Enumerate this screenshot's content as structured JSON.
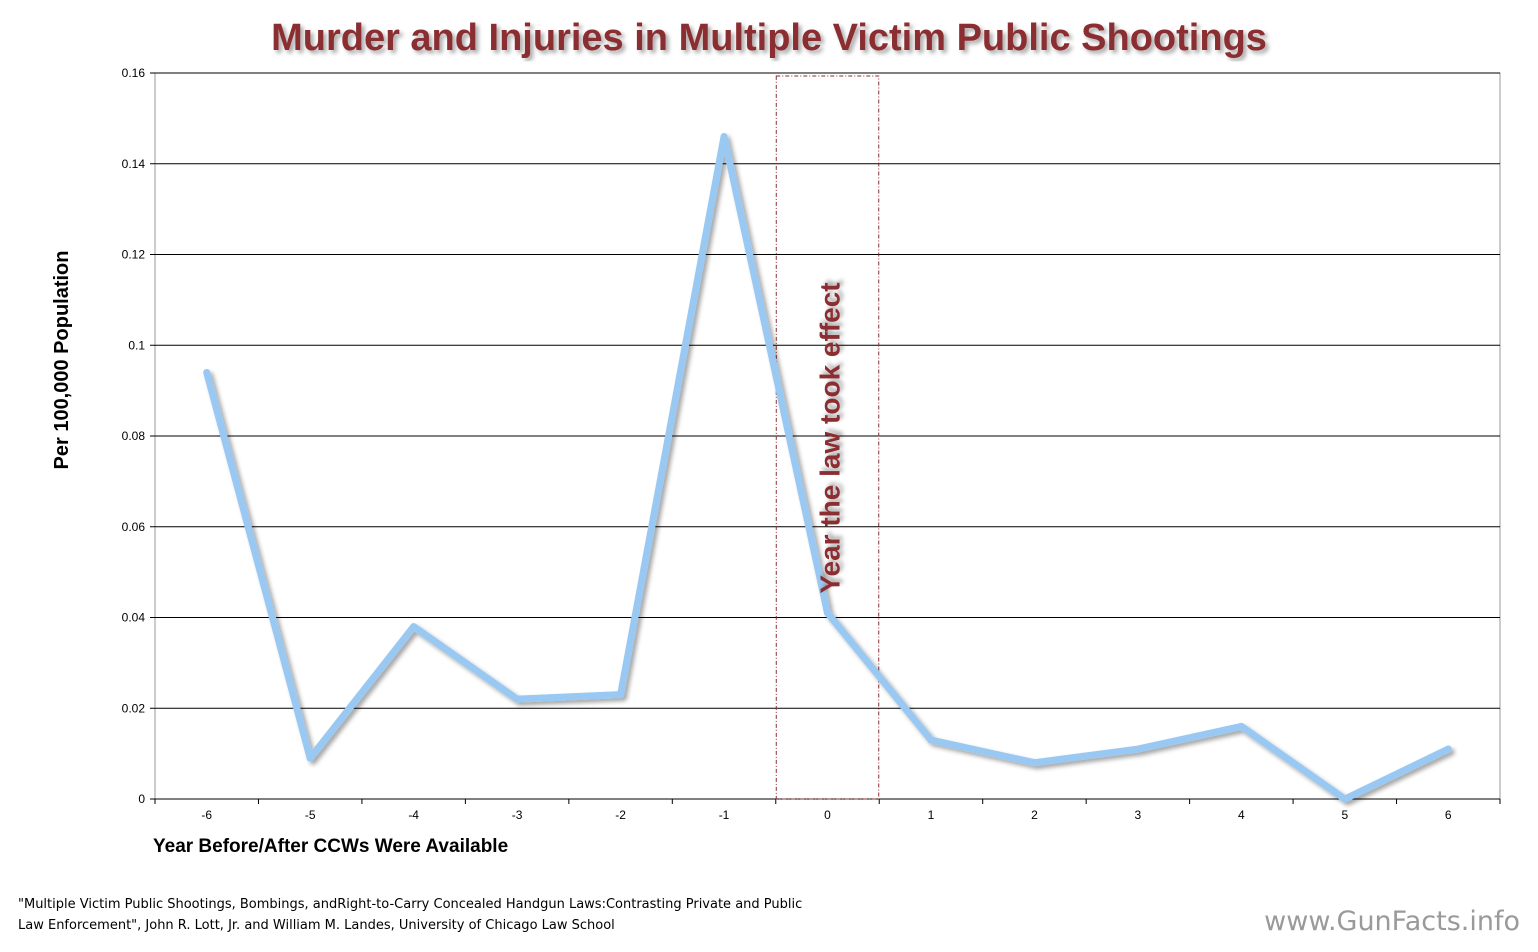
{
  "chart_data": {
    "type": "line",
    "title": "Murder and Injuries in Multiple Victim Public Shootings",
    "xlabel": "Year Before/After CCWs Were Available",
    "ylabel": "Per 100,000 Population",
    "x": [
      -6,
      -5,
      -4,
      -3,
      -2,
      -1,
      0,
      1,
      2,
      3,
      4,
      5,
      6
    ],
    "series": [
      {
        "values": [
          0.094,
          0.009,
          0.038,
          0.022,
          0.023,
          0.146,
          0.041,
          0.013,
          0.008,
          0.011,
          0.016,
          0.0,
          0.011
        ]
      }
    ],
    "ylim": [
      0,
      0.16
    ],
    "y_ticks": [
      "0",
      "0.02",
      "0.04",
      "0.06",
      "0.08",
      "0.1",
      "0.12",
      "0.14",
      "0.16"
    ],
    "x_ticks": [
      "-6",
      "-5",
      "-4",
      "-3",
      "-2",
      "-1",
      "0",
      "1",
      "2",
      "3",
      "4",
      "5",
      "6"
    ],
    "grid": "horizontal",
    "highlight": {
      "x": 0,
      "label": "Year the law took effect"
    },
    "colors": {
      "line": "#99c9f2",
      "title": "#8b2e31",
      "annotation": "#8b2e31",
      "grid": "#000000"
    }
  },
  "caption": {
    "line1": "\"Multiple Victim Public Shootings, Bombings, andRight-to-Carry Concealed Handgun Laws:Contrasting Private and Public",
    "line2": "Law Enforcement\",  John R. Lott, Jr. and William M. Landes, University of Chicago Law School"
  },
  "watermark": "www.GunFacts.info"
}
